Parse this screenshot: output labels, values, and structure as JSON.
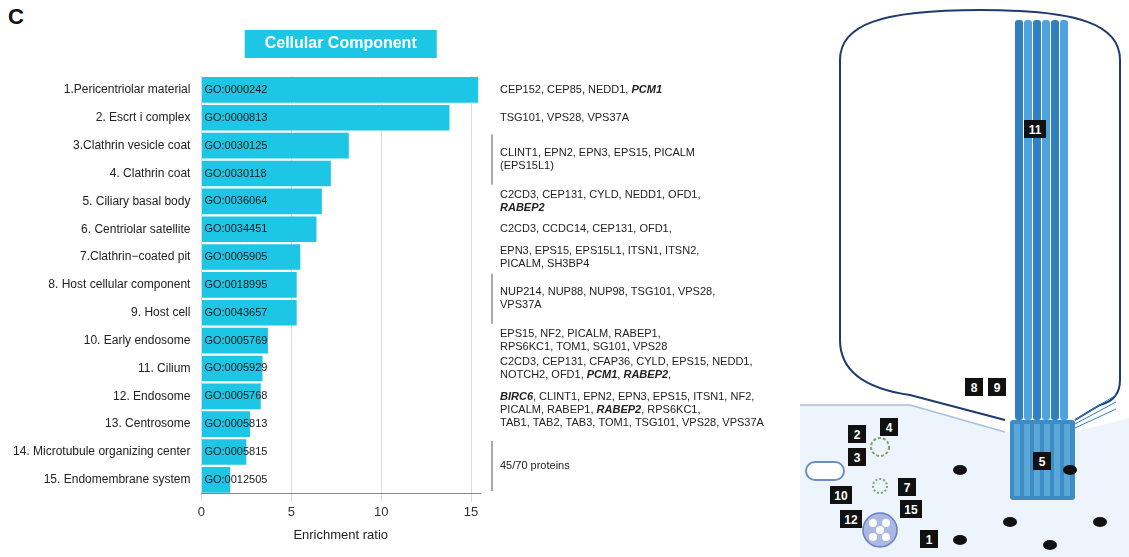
{
  "panel": "C",
  "chart_data": {
    "type": "bar",
    "orientation": "horizontal",
    "title": "Cellular Component",
    "x_label": "Enrichment ratio",
    "categories": [
      "1.Pericentriolar material",
      "2. Escrt i complex",
      "3.Clathrin vesicle coat",
      "4. Clathrin coat",
      "5. Ciliary basal body",
      "6. Centriolar satellite",
      "7.Clathrin−coated pit",
      "8. Host cellular component",
      "9. Host cell",
      "10. Early endosome",
      "11. Cilium",
      "12. Endosome",
      "13. Centrosome",
      "14. Microtubule organizing center",
      "15. Endomembrane system"
    ],
    "go_ids": [
      "GO:0000242",
      "GO:0000813",
      "GO:0030125",
      "GO:0030118",
      "GO:0036064",
      "GO:0034451",
      "GO:0005905",
      "GO:0018995",
      "GO:0043657",
      "GO:0005769",
      "GO:0005929",
      "GO:0005768",
      "GO:0005813",
      "GO:0005815",
      "GO:0012505"
    ],
    "values": [
      15.4,
      13.8,
      8.2,
      7.2,
      6.7,
      6.4,
      5.5,
      5.3,
      5.3,
      3.7,
      3.4,
      3.3,
      2.7,
      2.5,
      1.6
    ],
    "color": "#1ec6e6",
    "xlim": [
      0,
      15.5
    ],
    "xticks": [
      0,
      5,
      10,
      15
    ],
    "grid": true,
    "emphasized": [
      "PCM1",
      "RABEP2",
      "BIRC6"
    ],
    "annotations": [
      {
        "rows": [
          1,
          1
        ],
        "lines": [
          "CEP152, CEP85, NEDD1, PCM1"
        ]
      },
      {
        "rows": [
          2,
          2
        ],
        "lines": [
          "TSG101, VPS28, VPS37A"
        ]
      },
      {
        "rows": [
          3,
          4
        ],
        "lines": [
          "CLINT1, EPN2, EPN3, EPS15, PICALM",
          "(EPS15L1)"
        ],
        "bracket": true
      },
      {
        "rows": [
          5,
          5
        ],
        "lines": [
          "C2CD3, CEP131, CYLD, NEDD1, OFD1,",
          "RABEP2"
        ]
      },
      {
        "rows": [
          6,
          6
        ],
        "lines": [
          "C2CD3, CCDC14, CEP131, OFD1,"
        ]
      },
      {
        "rows": [
          7,
          7
        ],
        "lines": [
          "EPN3, EPS15, EPS15L1, ITSN1, ITSN2,",
          "PICALM, SH3BP4"
        ]
      },
      {
        "rows": [
          8,
          9
        ],
        "lines": [
          "NUP214, NUP88, NUP98, TSG101, VPS28,",
          "VPS37A"
        ],
        "bracket": true
      },
      {
        "rows": [
          10,
          10
        ],
        "lines": [
          "EPS15, NF2, PICALM, RABEP1,",
          "RPS6KC1, TOM1, SG101, VPS28"
        ]
      },
      {
        "rows": [
          11,
          11
        ],
        "lines": [
          "C2CD3, CEP131, CFAP36, CYLD, EPS15, NEDD1,",
          "NOTCH2, OFD1, PCM1, RABEP2,"
        ]
      },
      {
        "rows": [
          12,
          13
        ],
        "lines": [
          "BIRC6, CLINT1, EPN2, EPN3, EPS15, ITSN1, NF2,",
          "PICALM, RABEP1, RABEP2, RPS6KC1,",
          "TAB1, TAB2, TAB3, TOM1, TSG101, VPS28, VPS37A"
        ]
      },
      {
        "rows": [
          14,
          15
        ],
        "lines": [
          "45/70 proteins"
        ],
        "bracket": true
      }
    ]
  },
  "diagram": {
    "markers": [
      "11",
      "8",
      "9",
      "5",
      "2",
      "4",
      "3",
      "7",
      "10",
      "15",
      "12",
      "1"
    ]
  }
}
